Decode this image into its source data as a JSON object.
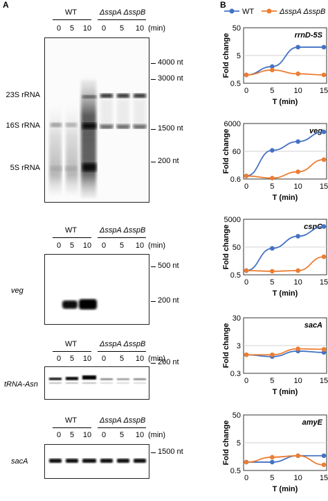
{
  "panels": {
    "a": "A",
    "b": "B"
  },
  "gels": [
    {
      "id": "rrna",
      "wt": "WT",
      "mut": "ΔsspA ΔsspB",
      "lanes": [
        "0",
        "5",
        "10",
        "0",
        "5",
        "10"
      ],
      "unit": "(min)",
      "left_labels": [
        "23S rRNA",
        "16S rRNA",
        "5S rRNA"
      ],
      "markers": [
        "4000 nt",
        "3000 nt",
        "1500 nt",
        "200 nt"
      ]
    },
    {
      "id": "veg",
      "wt": "WT",
      "mut": "ΔsspA ΔsspB",
      "lanes": [
        "0",
        "5",
        "10",
        "0",
        "5",
        "10"
      ],
      "unit": "(min)",
      "side_label": "veg",
      "markers": [
        "500 nt",
        "200 nt"
      ]
    },
    {
      "id": "trna",
      "wt": "WT",
      "mut": "ΔsspA ΔsspB",
      "lanes": [
        "0",
        "5",
        "10",
        "0",
        "5",
        "10"
      ],
      "unit": "(min)",
      "side_label": "tRNA-Asn",
      "markers": [
        "200 nt"
      ]
    },
    {
      "id": "saca",
      "wt": "WT",
      "mut": "ΔsspA ΔsspB",
      "lanes": [
        "0",
        "5",
        "10",
        "0",
        "5",
        "10"
      ],
      "unit": "(min)",
      "side_label": "sacA",
      "markers": [
        "1500 nt"
      ]
    }
  ],
  "legend": {
    "wt": "WT",
    "mut": "ΔsspA ΔsspB"
  },
  "colors": {
    "wt": "#4472C4",
    "mut": "#ED7D31"
  },
  "chart_data": [
    {
      "type": "line",
      "title": "rrnD-5S",
      "xlabel": "T (min)",
      "ylabel": "Fold change",
      "x": [
        0,
        5,
        10,
        15
      ],
      "yscale": "log",
      "ylim": [
        0.5,
        50
      ],
      "yticks": [
        "0.5",
        "5",
        "50"
      ],
      "xticks": [
        "0",
        "5",
        "10",
        "15"
      ],
      "series": [
        {
          "name": "WT",
          "values": [
            1,
            2,
            10,
            10
          ]
        },
        {
          "name": "ΔsspA ΔsspB",
          "values": [
            1,
            1.5,
            1.1,
            1
          ]
        }
      ]
    },
    {
      "type": "line",
      "title": "veg",
      "xlabel": "T (min)",
      "ylabel": "Fold change",
      "x": [
        0,
        5,
        10,
        15
      ],
      "yscale": "log",
      "ylim": [
        0.6,
        6000
      ],
      "yticks": [
        "0.6",
        "60",
        "6000"
      ],
      "xticks": [
        "0",
        "5",
        "10",
        "15"
      ],
      "series": [
        {
          "name": "WT",
          "values": [
            1,
            70,
            300,
            1500
          ]
        },
        {
          "name": "ΔsspA ΔsspB",
          "values": [
            1,
            0.7,
            2,
            15
          ]
        }
      ]
    },
    {
      "type": "line",
      "title": "cspC",
      "xlabel": "T (min)",
      "ylabel": "Fold change",
      "x": [
        0,
        5,
        10,
        15
      ],
      "yscale": "log",
      "ylim": [
        0.5,
        5000
      ],
      "yticks": [
        "0.5",
        "50",
        "5000"
      ],
      "xticks": [
        "0",
        "5",
        "10",
        "15"
      ],
      "series": [
        {
          "name": "WT",
          "values": [
            1,
            40,
            300,
            1500
          ]
        },
        {
          "name": "ΔsspA ΔsspB",
          "values": [
            1,
            0.9,
            1,
            10
          ]
        }
      ]
    },
    {
      "type": "line",
      "title": "sacA",
      "xlabel": "T (min)",
      "ylabel": "Fold change",
      "x": [
        0,
        5,
        10,
        15
      ],
      "yscale": "log",
      "ylim": [
        0.3,
        30
      ],
      "yticks": [
        "0.3",
        "3",
        "30"
      ],
      "xticks": [
        "0",
        "5",
        "10",
        "15"
      ],
      "series": [
        {
          "name": "WT",
          "values": [
            1.4,
            1.2,
            1.9,
            1.7
          ]
        },
        {
          "name": "ΔsspA ΔsspB",
          "values": [
            1.4,
            1.4,
            2.3,
            2.2
          ]
        }
      ]
    },
    {
      "type": "line",
      "title": "amyE",
      "xlabel": "T (min)",
      "ylabel": "Fold change",
      "x": [
        0,
        5,
        10,
        15
      ],
      "yscale": "log",
      "ylim": [
        0.5,
        50
      ],
      "yticks": [
        "0.5",
        "5",
        "50"
      ],
      "xticks": [
        "0",
        "5",
        "10",
        "15"
      ],
      "series": [
        {
          "name": "WT",
          "values": [
            1,
            1,
            1.7,
            1.7
          ]
        },
        {
          "name": "ΔsspA ΔsspB",
          "values": [
            1,
            1.5,
            1.7,
            0.8
          ]
        }
      ]
    }
  ]
}
